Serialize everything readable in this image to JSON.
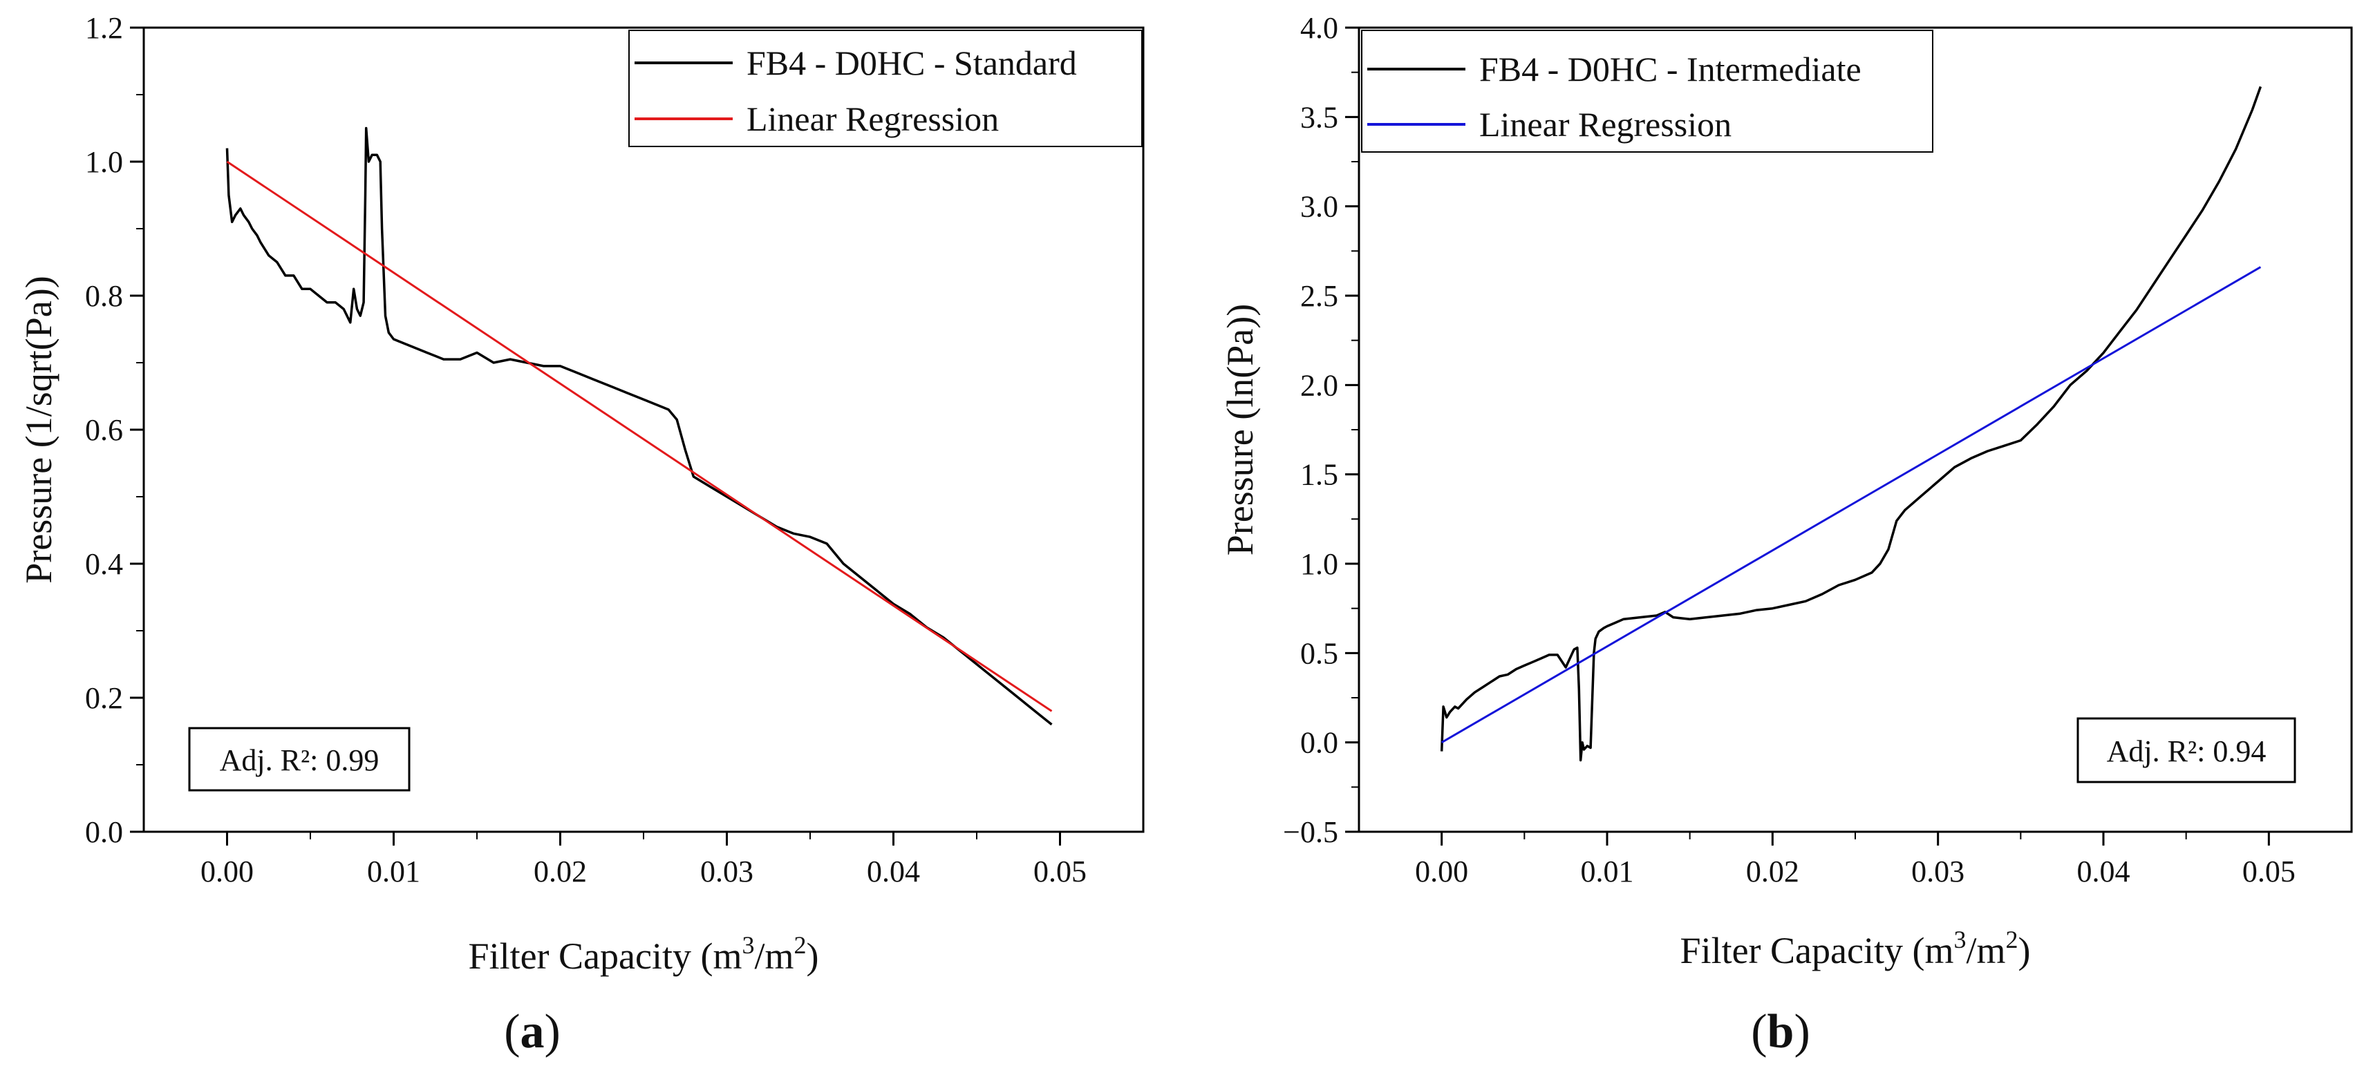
{
  "chart_data": [
    {
      "panel": "a",
      "type": "line",
      "panel_label_prefix": "(",
      "panel_label": "a",
      "panel_label_suffix": ")",
      "xlabel": "Filter Capacity (m3/m2)",
      "xlabel_parts": {
        "prefix": "Filter Capacity (m",
        "sup1": "3",
        "mid": "/m",
        "sup2": "2",
        "suffix": ")"
      },
      "ylabel": "Pressure (1/sqrt(Pa))",
      "xlim": [
        -0.005,
        0.055
      ],
      "ylim": [
        0.0,
        1.2
      ],
      "x_ticks": [
        0.0,
        0.01,
        0.02,
        0.03,
        0.04,
        0.05
      ],
      "x_tick_labels": [
        "0.00",
        "0.01",
        "0.02",
        "0.03",
        "0.04",
        "0.05"
      ],
      "y_ticks": [
        0.0,
        0.2,
        0.4,
        0.6,
        0.8,
        1.0,
        1.2
      ],
      "y_tick_labels": [
        "0.0",
        "0.2",
        "0.4",
        "0.6",
        "0.8",
        "1.0",
        "1.2"
      ],
      "legend_position": "top-right",
      "annotation": "Adj. R²: 0.99",
      "annotation_position": "bottom-left",
      "series": [
        {
          "name": "FB4 - D0HC - Standard",
          "color": "#000000",
          "x": [
            0,
            0.0001,
            0.0003,
            0.0005,
            0.0008,
            0.001,
            0.0013,
            0.0015,
            0.0018,
            0.002,
            0.0025,
            0.003,
            0.0035,
            0.004,
            0.0045,
            0.005,
            0.0055,
            0.006,
            0.0065,
            0.007,
            0.0074,
            0.0076,
            0.0078,
            0.008,
            0.0082,
            0.0083,
            0.00835,
            0.0085,
            0.0087,
            0.009,
            0.0092,
            0.0093,
            0.0095,
            0.0097,
            0.01,
            0.0105,
            0.011,
            0.012,
            0.013,
            0.014,
            0.015,
            0.016,
            0.017,
            0.018,
            0.019,
            0.02,
            0.021,
            0.022,
            0.023,
            0.024,
            0.025,
            0.026,
            0.0265,
            0.027,
            0.0275,
            0.028,
            0.029,
            0.03,
            0.031,
            0.032,
            0.033,
            0.034,
            0.035,
            0.036,
            0.037,
            0.038,
            0.039,
            0.04,
            0.041,
            0.042,
            0.043,
            0.044,
            0.045,
            0.046,
            0.047,
            0.048,
            0.049,
            0.0495
          ],
          "y": [
            1.02,
            0.95,
            0.91,
            0.92,
            0.93,
            0.92,
            0.91,
            0.9,
            0.89,
            0.88,
            0.86,
            0.85,
            0.83,
            0.83,
            0.81,
            0.81,
            0.8,
            0.79,
            0.79,
            0.78,
            0.76,
            0.81,
            0.78,
            0.77,
            0.79,
            0.95,
            1.05,
            1.0,
            1.01,
            1.01,
            1.0,
            0.9,
            0.77,
            0.745,
            0.735,
            0.73,
            0.725,
            0.715,
            0.705,
            0.705,
            0.715,
            0.7,
            0.705,
            0.7,
            0.695,
            0.695,
            0.685,
            0.675,
            0.665,
            0.655,
            0.645,
            0.635,
            0.63,
            0.615,
            0.57,
            0.53,
            0.515,
            0.5,
            0.485,
            0.47,
            0.455,
            0.445,
            0.44,
            0.43,
            0.4,
            0.38,
            0.36,
            0.34,
            0.325,
            0.305,
            0.29,
            0.27,
            0.25,
            0.23,
            0.21,
            0.19,
            0.17,
            0.16
          ]
        },
        {
          "name": "Linear Regression",
          "color": "#e31a1c",
          "x": [
            0,
            0.0495
          ],
          "y": [
            1.0,
            0.18
          ]
        }
      ]
    },
    {
      "panel": "b",
      "type": "line",
      "panel_label_prefix": "(",
      "panel_label": "b",
      "panel_label_suffix": ")",
      "xlabel": "Filter Capacity (m3/m2)",
      "xlabel_parts": {
        "prefix": "Filter Capacity (m",
        "sup1": "3",
        "mid": "/m",
        "sup2": "2",
        "suffix": ")"
      },
      "ylabel": "Pressure (ln(Pa))",
      "xlim": [
        -0.005,
        0.055
      ],
      "ylim": [
        -0.5,
        4.0
      ],
      "x_ticks": [
        0.0,
        0.01,
        0.02,
        0.03,
        0.04,
        0.05
      ],
      "x_tick_labels": [
        "0.00",
        "0.01",
        "0.02",
        "0.03",
        "0.04",
        "0.05"
      ],
      "y_ticks": [
        -0.5,
        0.0,
        0.5,
        1.0,
        1.5,
        2.0,
        2.5,
        3.0,
        3.5,
        4.0
      ],
      "y_tick_labels": [
        "−0.5",
        "0.0",
        "0.5",
        "1.0",
        "1.5",
        "2.0",
        "2.5",
        "3.0",
        "3.5",
        "4.0"
      ],
      "legend_position": "top-left",
      "annotation": "Adj. R²: 0.94",
      "annotation_position": "bottom-right",
      "series": [
        {
          "name": "FB4 - D0HC - Intermediate",
          "color": "#000000",
          "x": [
            0,
            0.0001,
            0.0003,
            0.0005,
            0.0008,
            0.001,
            0.0015,
            0.002,
            0.0025,
            0.003,
            0.0035,
            0.004,
            0.0045,
            0.005,
            0.0055,
            0.006,
            0.0065,
            0.007,
            0.0075,
            0.008,
            0.0082,
            0.0083,
            0.0084,
            0.0085,
            0.0086,
            0.0088,
            0.009,
            0.0092,
            0.0093,
            0.0095,
            0.0098,
            0.01,
            0.0105,
            0.011,
            0.012,
            0.013,
            0.0135,
            0.014,
            0.015,
            0.016,
            0.017,
            0.018,
            0.019,
            0.02,
            0.021,
            0.022,
            0.023,
            0.024,
            0.025,
            0.026,
            0.0265,
            0.027,
            0.0275,
            0.028,
            0.029,
            0.03,
            0.031,
            0.032,
            0.033,
            0.034,
            0.035,
            0.036,
            0.037,
            0.038,
            0.039,
            0.04,
            0.041,
            0.042,
            0.043,
            0.044,
            0.045,
            0.046,
            0.047,
            0.048,
            0.049,
            0.0495
          ],
          "y": [
            -0.05,
            0.2,
            0.14,
            0.17,
            0.2,
            0.19,
            0.24,
            0.28,
            0.31,
            0.34,
            0.37,
            0.38,
            0.41,
            0.43,
            0.45,
            0.47,
            0.49,
            0.49,
            0.42,
            0.52,
            0.53,
            0.3,
            -0.1,
            0.0,
            -0.04,
            -0.02,
            -0.03,
            0.5,
            0.58,
            0.62,
            0.64,
            0.65,
            0.67,
            0.69,
            0.7,
            0.71,
            0.73,
            0.7,
            0.69,
            0.7,
            0.71,
            0.72,
            0.74,
            0.75,
            0.77,
            0.79,
            0.83,
            0.88,
            0.91,
            0.95,
            1.0,
            1.08,
            1.24,
            1.3,
            1.38,
            1.46,
            1.54,
            1.59,
            1.63,
            1.66,
            1.69,
            1.78,
            1.88,
            2.0,
            2.08,
            2.18,
            2.3,
            2.42,
            2.56,
            2.7,
            2.84,
            2.98,
            3.14,
            3.32,
            3.54,
            3.67
          ]
        },
        {
          "name": "Linear Regression",
          "color": "#1414d9",
          "x": [
            0,
            0.0495
          ],
          "y": [
            0.0,
            2.66
          ]
        }
      ]
    }
  ]
}
